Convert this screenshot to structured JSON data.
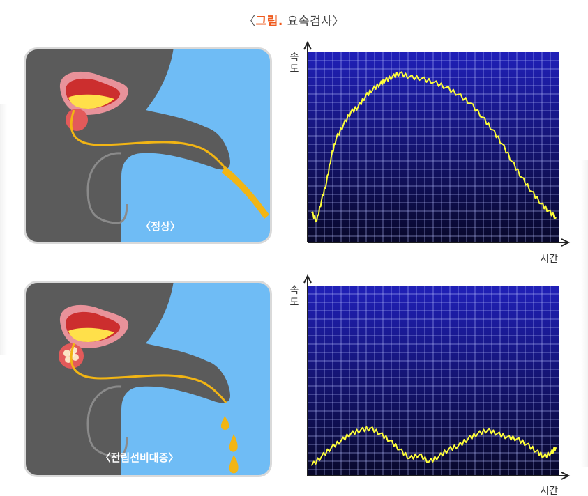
{
  "figure": {
    "title_open": "〈",
    "title_accent": "그림",
    "title_dot": ".",
    "title_text": "요속검사",
    "title_close": "〉"
  },
  "colors": {
    "accent": "#ef5a1d",
    "body_gray": "#5b5b5b",
    "background_blue": "#6fbcf5",
    "urine_yellow": "#f2b514",
    "chart_bg_top": "#2020b8",
    "chart_bg_bottom": "#08082a",
    "chart_line": "#ffff3a"
  },
  "panels": [
    {
      "label": "〈정상〉"
    },
    {
      "label": "〈전립선비대증〉"
    }
  ],
  "chart_data": [
    {
      "type": "line",
      "xlabel": "시간",
      "ylabel": "속도",
      "grid": true,
      "series": [
        {
          "x": [
            0,
            0.02,
            0.04,
            0.06,
            0.08,
            0.1,
            0.13,
            0.16,
            0.19,
            0.22,
            0.25,
            0.28,
            0.3,
            0.33,
            0.36,
            0.4,
            0.45,
            0.5,
            0.55,
            0.6,
            0.65,
            0.7,
            0.74,
            0.78,
            0.82,
            0.86,
            0.9,
            0.94,
            0.97,
            1.0
          ],
          "y": [
            0.13,
            0.08,
            0.2,
            0.3,
            0.45,
            0.55,
            0.63,
            0.7,
            0.73,
            0.79,
            0.83,
            0.86,
            0.88,
            0.9,
            0.92,
            0.9,
            0.89,
            0.87,
            0.84,
            0.8,
            0.75,
            0.67,
            0.6,
            0.52,
            0.42,
            0.33,
            0.25,
            0.18,
            0.14,
            0.1
          ]
        }
      ]
    },
    {
      "type": "line",
      "xlabel": "시간",
      "ylabel": "속도",
      "grid": true,
      "series": [
        {
          "x": [
            0,
            0.04,
            0.08,
            0.12,
            0.16,
            0.2,
            0.24,
            0.28,
            0.32,
            0.36,
            0.4,
            0.44,
            0.48,
            0.52,
            0.56,
            0.6,
            0.64,
            0.68,
            0.72,
            0.76,
            0.8,
            0.84,
            0.88,
            0.92,
            0.95,
            0.98,
            1.0
          ],
          "y": [
            0.02,
            0.07,
            0.12,
            0.16,
            0.2,
            0.22,
            0.23,
            0.2,
            0.16,
            0.11,
            0.06,
            0.08,
            0.04,
            0.07,
            0.11,
            0.13,
            0.17,
            0.2,
            0.22,
            0.2,
            0.18,
            0.17,
            0.14,
            0.1,
            0.07,
            0.09,
            0.12
          ]
        }
      ]
    }
  ]
}
